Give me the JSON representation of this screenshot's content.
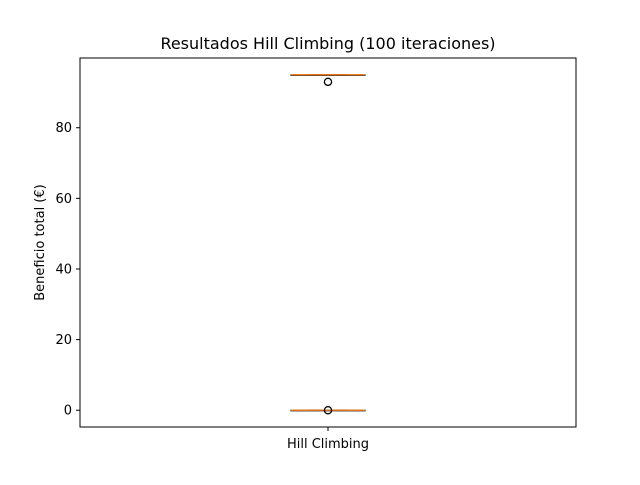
{
  "chart_data": {
    "type": "box",
    "title": "Resultados Hill Climbing (100 iteraciones)",
    "xlabel": "",
    "ylabel": "Beneficio total (€)",
    "categories": [
      "Hill Climbing"
    ],
    "ylim": [
      -4.75,
      99.75
    ],
    "yticks": [
      0,
      20,
      40,
      60,
      80
    ],
    "grid": false,
    "boxes": [
      {
        "category": "Hill Climbing",
        "groups": [
          {
            "q1": 95,
            "median": 95,
            "q3": 95,
            "whisker_low": 95,
            "whisker_high": 95,
            "outliers": [
              93
            ]
          },
          {
            "q1": 0,
            "median": 0,
            "q3": 0,
            "whisker_low": 0,
            "whisker_high": 0,
            "outliers": [
              0
            ]
          }
        ]
      }
    ],
    "colors": {
      "median": "#ff7f0e",
      "box": "#000000",
      "outlier": "#000000"
    }
  }
}
